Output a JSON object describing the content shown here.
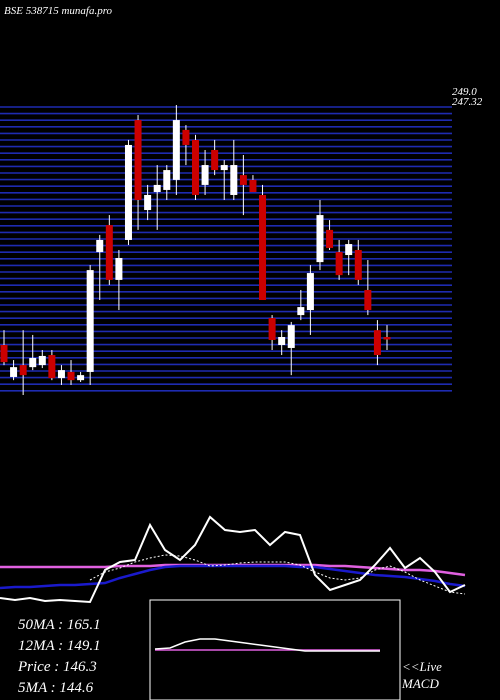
{
  "chart_data": [
    {
      "type": "candlestick",
      "title": "BSE 538715 munafa.pro",
      "open": [
        143.9,
        129.9,
        135.1,
        134.2,
        135.1,
        139.5,
        129.4,
        132.1,
        128.5,
        132.1,
        184.6,
        196.4,
        172.4,
        189.9,
        242.4,
        203.0,
        210.9,
        211.8,
        216.2,
        238.1,
        233.7,
        214.0,
        229.3,
        220.5,
        209.6,
        218.3,
        216.2,
        209.6,
        155.7,
        143.9,
        142.6,
        157.0,
        159.2,
        180.2,
        194.3,
        184.6,
        183.3,
        185.5,
        168.0,
        150.4,
        147.4
      ],
      "high": [
        150.4,
        137.3,
        150.4,
        148.3,
        141.7,
        141.7,
        135.1,
        137.3,
        132.1,
        178.9,
        192.1,
        200.8,
        185.5,
        233.7,
        244.6,
        214.0,
        222.7,
        222.7,
        249.0,
        240.2,
        235.9,
        229.3,
        233.7,
        224.9,
        233.7,
        227.1,
        218.3,
        214.0,
        157.0,
        150.4,
        154.0,
        168.0,
        178.9,
        207.4,
        198.6,
        189.9,
        189.9,
        189.9,
        181.1,
        154.8,
        152.6
      ],
      "low": [
        135.1,
        128.5,
        122.0,
        132.9,
        133.8,
        128.5,
        126.4,
        126.4,
        127.7,
        126.4,
        163.6,
        170.2,
        159.2,
        187.7,
        194.3,
        198.6,
        194.3,
        207.4,
        209.6,
        222.7,
        207.4,
        209.6,
        218.3,
        207.4,
        207.4,
        200.8,
        211.8,
        163.6,
        141.7,
        139.5,
        130.7,
        154.8,
        148.3,
        176.7,
        185.5,
        172.4,
        174.5,
        170.2,
        157.0,
        135.1,
        141.7
      ],
      "close": [
        136.4,
        134.2,
        130.7,
        138.2,
        139.1,
        129.4,
        132.9,
        128.5,
        130.7,
        176.7,
        189.9,
        172.4,
        182.0,
        231.5,
        207.4,
        209.6,
        214.0,
        220.5,
        242.4,
        231.5,
        209.6,
        222.7,
        220.5,
        222.7,
        222.7,
        214.0,
        210.9,
        163.6,
        146.1,
        147.4,
        152.6,
        160.5,
        175.4,
        200.8,
        186.4,
        174.5,
        188.1,
        172.4,
        159.2,
        139.5,
        146.3
      ],
      "up_color": "#ffffff",
      "down_color": "#cc0000",
      "grid_color": "#1e2bb0",
      "ylim": [
        122,
        249
      ],
      "yticks": [
        {
          "value": 249,
          "label": "249.0"
        },
        {
          "value": 247.32,
          "label": "247.32"
        }
      ]
    },
    {
      "type": "line",
      "ylim": [
        0,
        100
      ],
      "series": [
        {
          "color": "#e060e0",
          "width": 2.5,
          "dashed": false,
          "values": [
            38,
            38,
            38,
            38,
            38,
            38,
            38,
            38,
            39,
            39,
            39,
            40,
            40,
            40,
            40,
            40,
            40,
            40,
            40,
            40,
            40,
            40,
            39,
            39,
            38,
            37,
            36,
            35,
            35,
            34,
            32,
            30
          ]
        },
        {
          "color": "#1a1acc",
          "width": 2.5,
          "dashed": false,
          "values": [
            17,
            18,
            18,
            19,
            20,
            20,
            21,
            22,
            27,
            31,
            35,
            38,
            39,
            39,
            39,
            39,
            39,
            39,
            39,
            39,
            38,
            38,
            36,
            34,
            32,
            30,
            29,
            28,
            26,
            24,
            21,
            19
          ]
        },
        {
          "color": "#ffffff",
          "width": 1,
          "dashed": true,
          "values": [
            null,
            null,
            null,
            null,
            null,
            null,
            25,
            33,
            37,
            43,
            47,
            50,
            49,
            45,
            39,
            40,
            42,
            43,
            43,
            43,
            40,
            33,
            27,
            25,
            27,
            35,
            39,
            33,
            25,
            19,
            13,
            11
          ]
        },
        {
          "color": "#ffffff",
          "width": 2,
          "dashed": false,
          "values": [
            7,
            5,
            7,
            4,
            5,
            4,
            3,
            35,
            43,
            45,
            80,
            55,
            45,
            60,
            88,
            75,
            73,
            75,
            60,
            73,
            70,
            30,
            15,
            20,
            25,
            40,
            57,
            37,
            47,
            33,
            13,
            20
          ]
        }
      ]
    },
    {
      "type": "line",
      "ylim": [
        0,
        100
      ],
      "series": [
        {
          "color": "#e060e0",
          "width": 1.5,
          "dashed": false,
          "values": [
            50,
            50,
            50,
            50,
            50,
            50,
            50,
            50,
            50,
            50,
            50,
            50,
            50,
            50,
            50,
            50
          ]
        },
        {
          "color": "#ffffff",
          "width": 1.5,
          "dashed": false,
          "values": [
            51,
            52,
            58,
            61,
            61,
            59,
            57,
            55,
            53,
            51,
            49,
            49,
            49,
            49,
            49,
            49
          ]
        }
      ]
    }
  ],
  "info": {
    "lines": [
      "50MA : 165.1",
      "12MA : 149.1",
      "Price  : 146.3",
      "5MA : 144.6"
    ],
    "live": "<<Live",
    "macd": "MACD"
  }
}
